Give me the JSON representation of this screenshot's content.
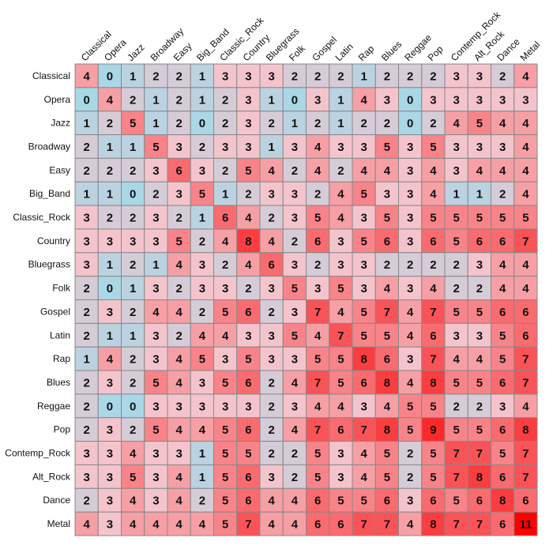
{
  "chart_data": {
    "type": "heatmap",
    "title": "",
    "xlabel": "",
    "ylabel": "",
    "labels": [
      "Classical",
      "Opera",
      "Jazz",
      "Broadway",
      "Easy",
      "Big_Band",
      "Classic_Rock",
      "Country",
      "Bluegrass",
      "Folk",
      "Gospel",
      "Latin",
      "Rap",
      "Blues",
      "Reggae",
      "Pop",
      "Contemp_Rock",
      "Alt_Rock",
      "Dance",
      "Metal"
    ],
    "values": [
      [
        4,
        0,
        1,
        2,
        2,
        1,
        3,
        3,
        3,
        2,
        2,
        2,
        1,
        2,
        2,
        2,
        3,
        3,
        2,
        4
      ],
      [
        0,
        4,
        2,
        1,
        2,
        1,
        2,
        3,
        1,
        0,
        3,
        1,
        4,
        3,
        0,
        3,
        3,
        3,
        3,
        3
      ],
      [
        1,
        2,
        5,
        1,
        2,
        0,
        2,
        3,
        2,
        1,
        2,
        1,
        2,
        2,
        0,
        2,
        4,
        5,
        4,
        4
      ],
      [
        2,
        1,
        1,
        5,
        3,
        2,
        3,
        3,
        1,
        3,
        4,
        3,
        3,
        5,
        3,
        5,
        3,
        3,
        3,
        4
      ],
      [
        2,
        2,
        2,
        3,
        6,
        3,
        2,
        5,
        4,
        2,
        4,
        2,
        4,
        4,
        3,
        4,
        3,
        4,
        4,
        4
      ],
      [
        1,
        1,
        0,
        2,
        3,
        5,
        1,
        2,
        3,
        3,
        2,
        4,
        5,
        3,
        3,
        4,
        1,
        1,
        2,
        4
      ],
      [
        3,
        2,
        2,
        3,
        2,
        1,
        6,
        4,
        2,
        3,
        5,
        4,
        3,
        5,
        3,
        5,
        5,
        5,
        5,
        5
      ],
      [
        3,
        3,
        3,
        3,
        5,
        2,
        4,
        8,
        4,
        2,
        6,
        3,
        5,
        6,
        3,
        6,
        5,
        6,
        6,
        7
      ],
      [
        3,
        1,
        2,
        1,
        4,
        3,
        2,
        4,
        6,
        3,
        2,
        3,
        3,
        2,
        2,
        2,
        2,
        3,
        4,
        4
      ],
      [
        2,
        0,
        1,
        3,
        2,
        3,
        3,
        2,
        3,
        5,
        3,
        5,
        3,
        4,
        3,
        4,
        2,
        2,
        4,
        4
      ],
      [
        2,
        3,
        2,
        4,
        4,
        2,
        5,
        6,
        2,
        3,
        7,
        4,
        5,
        7,
        4,
        7,
        5,
        5,
        6,
        6
      ],
      [
        2,
        1,
        1,
        3,
        2,
        4,
        4,
        3,
        3,
        5,
        4,
        7,
        5,
        5,
        4,
        6,
        3,
        3,
        5,
        6
      ],
      [
        1,
        4,
        2,
        3,
        4,
        5,
        3,
        5,
        3,
        3,
        5,
        5,
        8,
        6,
        3,
        7,
        4,
        4,
        5,
        7
      ],
      [
        2,
        3,
        2,
        5,
        4,
        3,
        5,
        6,
        2,
        4,
        7,
        5,
        6,
        8,
        4,
        8,
        5,
        5,
        6,
        7
      ],
      [
        2,
        0,
        0,
        3,
        3,
        3,
        3,
        3,
        2,
        3,
        4,
        4,
        3,
        4,
        5,
        5,
        2,
        2,
        3,
        4
      ],
      [
        2,
        3,
        2,
        5,
        4,
        4,
        5,
        6,
        2,
        4,
        7,
        6,
        7,
        8,
        5,
        9,
        5,
        5,
        6,
        8
      ],
      [
        3,
        3,
        4,
        3,
        3,
        1,
        5,
        5,
        2,
        2,
        5,
        3,
        4,
        5,
        2,
        5,
        7,
        7,
        5,
        7
      ],
      [
        3,
        3,
        5,
        3,
        4,
        1,
        5,
        6,
        3,
        2,
        5,
        3,
        4,
        5,
        2,
        5,
        7,
        8,
        6,
        7
      ],
      [
        2,
        3,
        4,
        3,
        4,
        2,
        5,
        6,
        4,
        4,
        6,
        5,
        5,
        6,
        3,
        6,
        5,
        6,
        8,
        6
      ],
      [
        4,
        3,
        4,
        4,
        4,
        4,
        5,
        7,
        4,
        4,
        6,
        6,
        7,
        7,
        4,
        8,
        7,
        7,
        6,
        11
      ]
    ],
    "value_range": [
      0,
      11
    ],
    "color_low": "#a9d7e6",
    "color_mid": "#f4c4cc",
    "color_high": "#ff0000",
    "grid_color": "#888888",
    "legend": "none"
  }
}
